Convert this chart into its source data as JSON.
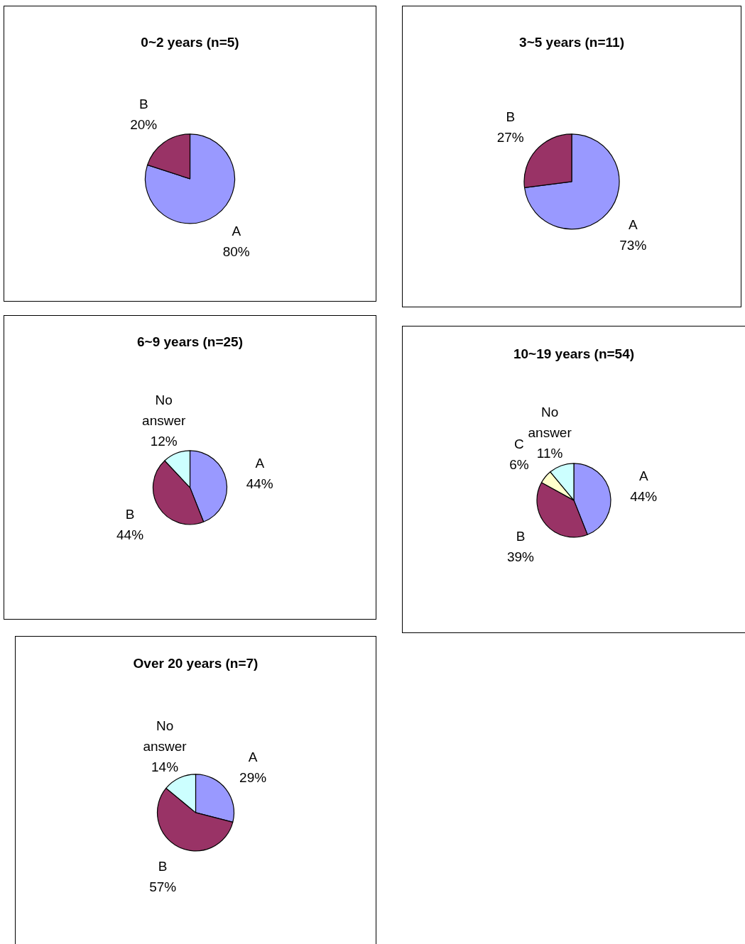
{
  "chart_data": [
    {
      "type": "pie",
      "title": "0~2 years (n=5)",
      "categories": [
        "A",
        "B"
      ],
      "values": [
        80,
        20
      ],
      "colors": [
        "#9999ff",
        "#993366"
      ],
      "value_labels": [
        "80%",
        "20%"
      ],
      "legend": false
    },
    {
      "type": "pie",
      "title": "3~5 years (n=11)",
      "categories": [
        "A",
        "B"
      ],
      "values": [
        73,
        27
      ],
      "colors": [
        "#9999ff",
        "#993366"
      ],
      "value_labels": [
        "73%",
        "27%"
      ],
      "legend": false
    },
    {
      "type": "pie",
      "title": "6~9 years (n=25)",
      "categories": [
        "A",
        "B",
        "No answer"
      ],
      "values": [
        44,
        44,
        12
      ],
      "colors": [
        "#9999ff",
        "#993366",
        "#ccffff"
      ],
      "value_labels": [
        "44%",
        "44%",
        "12%"
      ],
      "legend": false
    },
    {
      "type": "pie",
      "title": "10~19 years (n=54)",
      "categories": [
        "A",
        "B",
        "C",
        "No answer"
      ],
      "values": [
        44,
        39,
        6,
        11
      ],
      "colors": [
        "#9999ff",
        "#993366",
        "#ffffcc",
        "#ccffff"
      ],
      "value_labels": [
        "44%",
        "39%",
        "6%",
        "11%"
      ],
      "legend": false
    },
    {
      "type": "pie",
      "title": "Over 20 years (n=7)",
      "categories": [
        "A",
        "B",
        "No answer"
      ],
      "values": [
        29,
        57,
        14
      ],
      "colors": [
        "#9999ff",
        "#993366",
        "#ccffff"
      ],
      "value_labels": [
        "29%",
        "57%",
        "14%"
      ],
      "legend": false
    }
  ]
}
